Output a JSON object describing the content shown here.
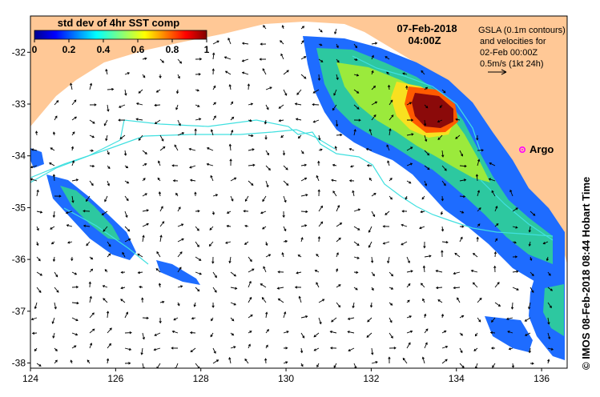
{
  "colorbar": {
    "title": "std dev of 4hr SST comp",
    "ticks": [
      "0",
      "0.2",
      "0.4",
      "0.6",
      "0.8",
      "1"
    ],
    "range": [
      0,
      1
    ]
  },
  "datetime": {
    "date": "07-Feb-2018",
    "time": "04:00Z"
  },
  "legend": {
    "lines": [
      "GSLA (0.1m contours)",
      "and velocities for",
      "02-Feb 00:00Z",
      "0.5m/s (1kt 24h)"
    ]
  },
  "argo": {
    "label": "Argo",
    "lon": 135.5,
    "lat": -33.85
  },
  "axes": {
    "x_ticks": [
      "124",
      "126",
      "128",
      "130",
      "132",
      "134",
      "136"
    ],
    "y_ticks": [
      "-32",
      "-33",
      "-34",
      "-35",
      "-36",
      "-37",
      "-38"
    ],
    "xlim": [
      124,
      136.6
    ],
    "ylim": [
      -38.1,
      -31.3
    ]
  },
  "credit": "© IMOS 08-Feb-2018 08:44 Hobart Time",
  "colors": {
    "land": "#ffc896",
    "contour": "#40e0e0",
    "argo": "#ff00ff",
    "ocean": "#ffffff"
  }
}
